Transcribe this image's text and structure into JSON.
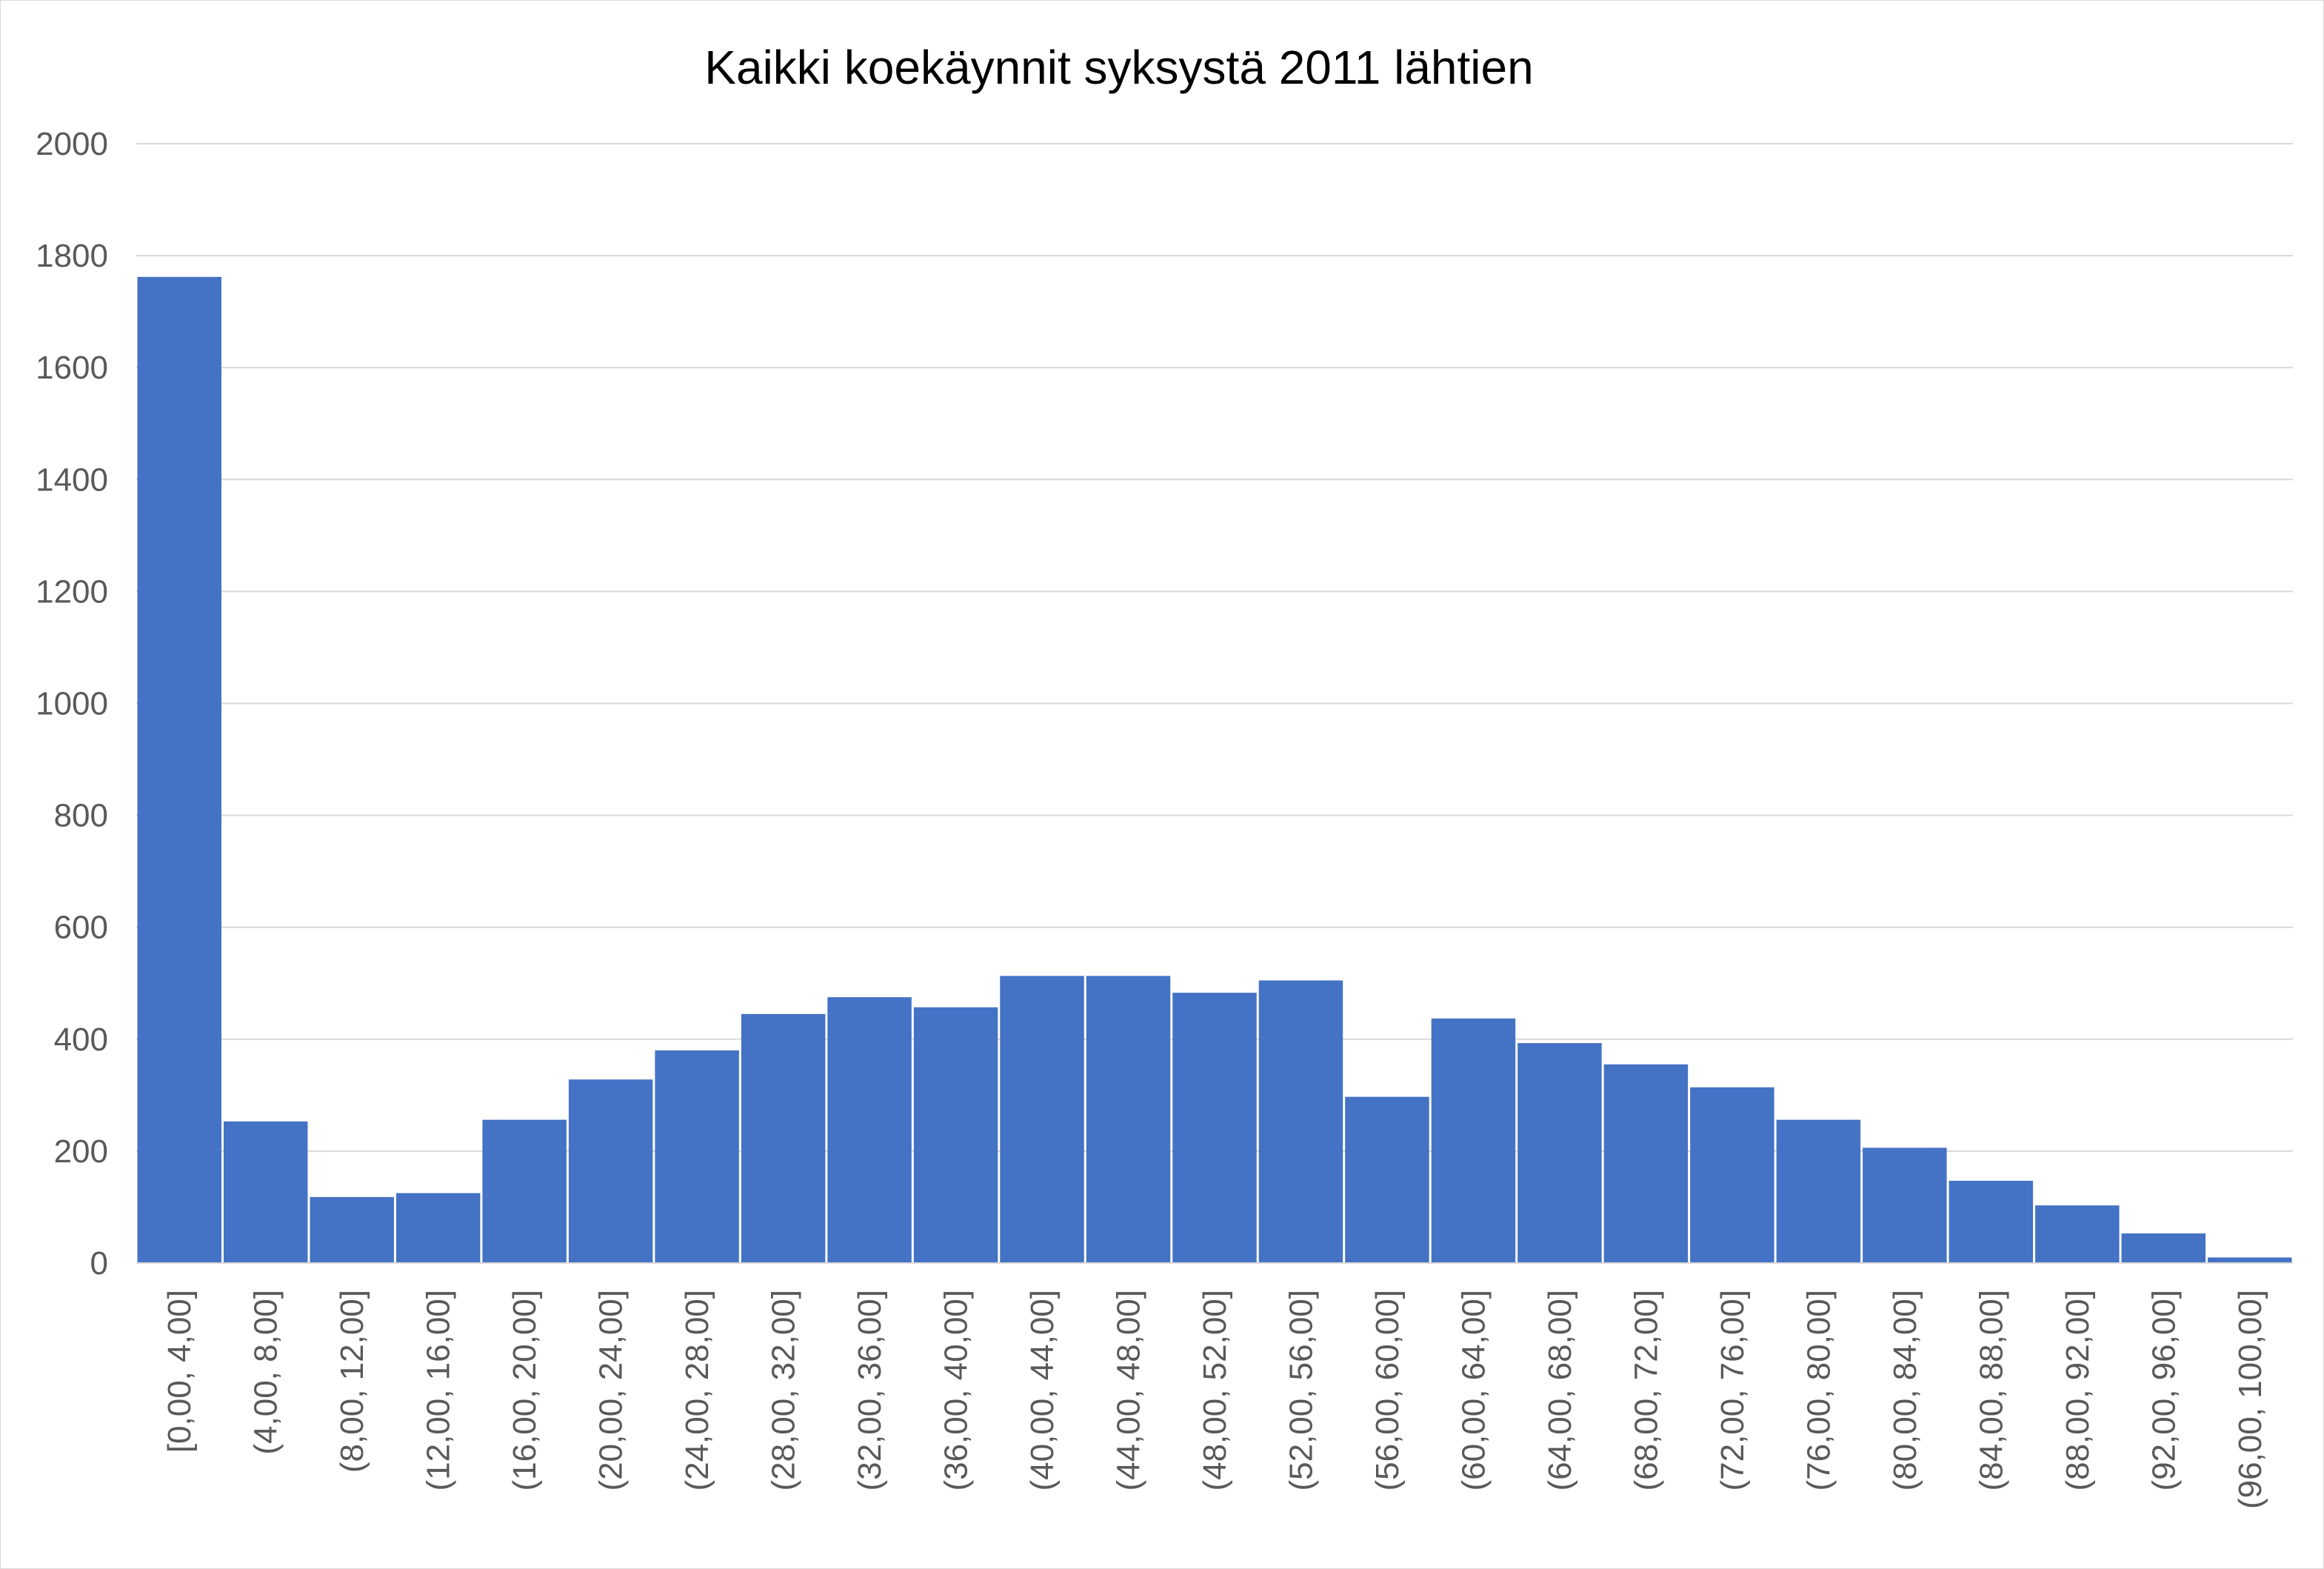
{
  "chart_data": {
    "type": "bar",
    "title": "Kaikki koekäynnit syksystä 2011 lähtien",
    "xlabel": "",
    "ylabel": "",
    "categories": [
      "[0,00, 4,00]",
      "(4,00, 8,00]",
      "(8,00, 12,00]",
      "(12,00, 16,00]",
      "(16,00, 20,00]",
      "(20,00, 24,00]",
      "(24,00, 28,00]",
      "(28,00, 32,00]",
      "(32,00, 36,00]",
      "(36,00, 40,00]",
      "(40,00, 44,00]",
      "(44,00, 48,00]",
      "(48,00, 52,00]",
      "(52,00, 56,00]",
      "(56,00, 60,00]",
      "(60,00, 64,00]",
      "(64,00, 68,00]",
      "(68,00, 72,00]",
      "(72,00, 76,00]",
      "(76,00, 80,00]",
      "(80,00, 84,00]",
      "(84,00, 88,00]",
      "(88,00, 92,00]",
      "(92,00, 96,00]",
      "(96,00, 100,00]"
    ],
    "values": [
      1762,
      253,
      118,
      125,
      256,
      328,
      380,
      445,
      475,
      457,
      513,
      513,
      483,
      505,
      297,
      437,
      393,
      355,
      314,
      256,
      206,
      147,
      103,
      53,
      10
    ],
    "ylim": [
      0,
      2000
    ],
    "yticks": [
      0,
      200,
      400,
      600,
      800,
      1000,
      1200,
      1400,
      1600,
      1800,
      2000
    ],
    "grid": true,
    "legend": "none",
    "bar_color": "#4472C4",
    "grid_color": "#d9d9d9",
    "tick_label_color": "#595959"
  }
}
